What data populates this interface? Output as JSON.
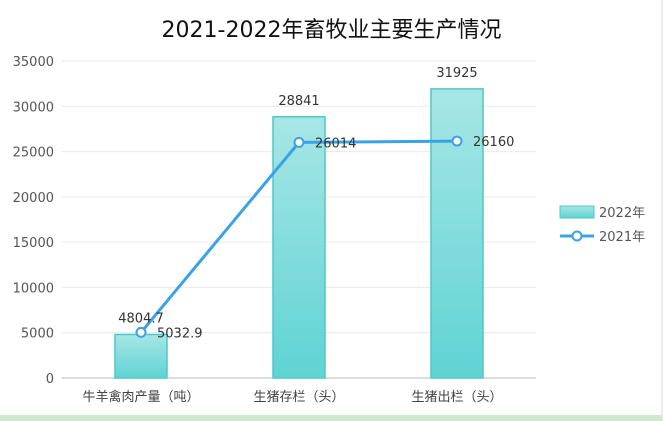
{
  "chart_data": {
    "type": "bar",
    "title": "2021-2022年畜牧业主要生产情况",
    "categories": [
      "牛羊禽肉产量（吨）",
      "生猪存栏（头）",
      "生猪出栏（头）"
    ],
    "series": [
      {
        "name": "2022年",
        "type": "bar",
        "values": [
          4804.7,
          28841,
          31925
        ],
        "labels": [
          "4804.7",
          "28841",
          "31925"
        ]
      },
      {
        "name": "2021年",
        "type": "line",
        "values": [
          5032.9,
          26014,
          26160
        ],
        "labels": [
          "5032.9",
          "26014",
          "26160"
        ]
      }
    ],
    "y_ticks": [
      "0",
      "5000",
      "10000",
      "15000",
      "20000",
      "25000",
      "30000",
      "35000"
    ],
    "ylim": [
      0,
      35000
    ],
    "grid": true,
    "legend_position": "right",
    "colors": {
      "bar_top": "#a8e6e6",
      "bar_bottom": "#5fd3d3",
      "bar_stroke": "#4cc9c9",
      "line": "#3aa3e3"
    }
  }
}
